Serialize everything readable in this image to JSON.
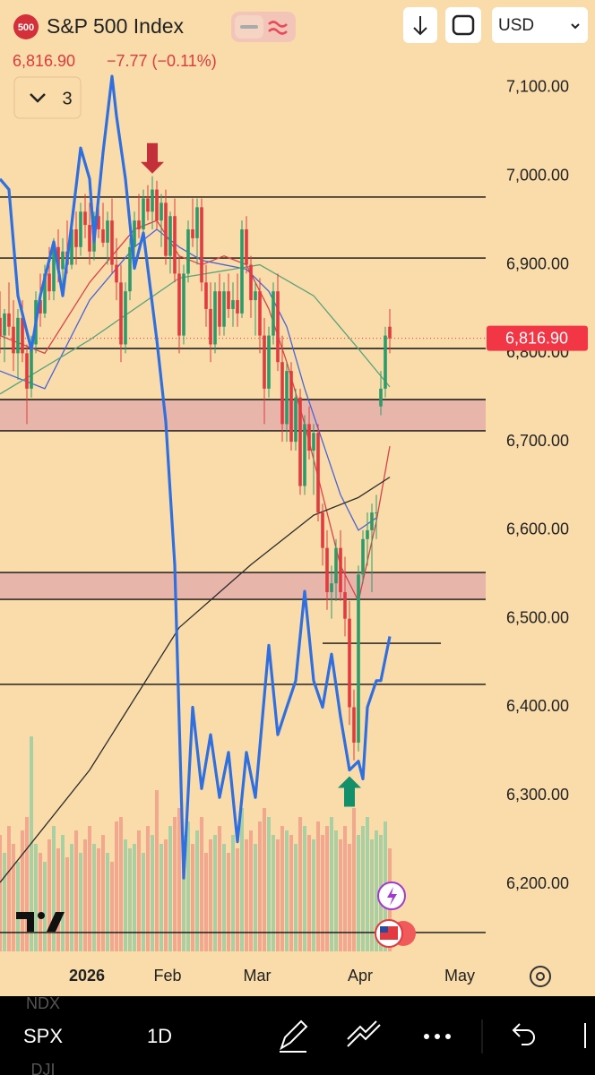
{
  "header": {
    "badge": "500",
    "title": "S&P 500 Index",
    "price": "6,816.90",
    "change": "−7.77 (−0.11%)",
    "indicator_count": "3",
    "currency": "USD"
  },
  "toolbar": {
    "symbol_above": "NDX",
    "symbol": "SPX",
    "symbol_below": "DJI",
    "interval": "1D"
  },
  "chart_data": {
    "type": "candlestick",
    "up_color": "#2e9a6a",
    "down_color": "#e23a40",
    "volume_up_color": "#a9cfa3",
    "volume_down_color": "#f3a78e",
    "candles": [
      [
        6840,
        6870,
        6800,
        6820
      ],
      [
        6820,
        6850,
        6790,
        6845
      ],
      [
        6845,
        6880,
        6820,
        6830
      ],
      [
        6830,
        6860,
        6780,
        6800
      ],
      [
        6800,
        6850,
        6770,
        6840
      ],
      [
        6840,
        6860,
        6790,
        6800
      ],
      [
        6800,
        6810,
        6720,
        6760
      ],
      [
        6760,
        6820,
        6750,
        6810
      ],
      [
        6810,
        6870,
        6800,
        6860
      ],
      [
        6860,
        6890,
        6830,
        6845
      ],
      [
        6845,
        6900,
        6840,
        6890
      ],
      [
        6890,
        6920,
        6860,
        6870
      ],
      [
        6870,
        6930,
        6860,
        6920
      ],
      [
        6920,
        6940,
        6880,
        6895
      ],
      [
        6895,
        6930,
        6870,
        6915
      ],
      [
        6915,
        6950,
        6890,
        6900
      ],
      [
        6900,
        6950,
        6895,
        6940
      ],
      [
        6940,
        6960,
        6900,
        6920
      ],
      [
        6920,
        6970,
        6910,
        6960
      ],
      [
        6960,
        6980,
        6930,
        6945
      ],
      [
        6945,
        6970,
        6900,
        6915
      ],
      [
        6915,
        6960,
        6905,
        6955
      ],
      [
        6955,
        6980,
        6930,
        6940
      ],
      [
        6940,
        6970,
        6920,
        6925
      ],
      [
        6925,
        6960,
        6900,
        6950
      ],
      [
        6950,
        6975,
        6890,
        6900
      ],
      [
        6900,
        6930,
        6860,
        6880
      ],
      [
        6880,
        6900,
        6790,
        6810
      ],
      [
        6810,
        6880,
        6800,
        6870
      ],
      [
        6870,
        6930,
        6860,
        6920
      ],
      [
        6920,
        6960,
        6900,
        6950
      ],
      [
        6950,
        6980,
        6930,
        6940
      ],
      [
        6940,
        6985,
        6930,
        6975
      ],
      [
        6975,
        6990,
        6950,
        6960
      ],
      [
        6960,
        7000,
        6940,
        6985
      ],
      [
        6985,
        6995,
        6940,
        6950
      ],
      [
        6950,
        6980,
        6920,
        6970
      ],
      [
        6970,
        6985,
        6900,
        6910
      ],
      [
        6910,
        6960,
        6890,
        6955
      ],
      [
        6955,
        6975,
        6880,
        6890
      ],
      [
        6890,
        6910,
        6800,
        6820
      ],
      [
        6820,
        6900,
        6810,
        6890
      ],
      [
        6890,
        6950,
        6880,
        6940
      ],
      [
        6940,
        6975,
        6920,
        6930
      ],
      [
        6930,
        6975,
        6900,
        6965
      ],
      [
        6965,
        6975,
        6870,
        6880
      ],
      [
        6880,
        6900,
        6830,
        6850
      ],
      [
        6850,
        6880,
        6790,
        6810
      ],
      [
        6810,
        6880,
        6800,
        6870
      ],
      [
        6870,
        6890,
        6820,
        6830
      ],
      [
        6830,
        6880,
        6820,
        6870
      ],
      [
        6870,
        6890,
        6840,
        6850
      ],
      [
        6850,
        6880,
        6830,
        6860
      ],
      [
        6860,
        6890,
        6830,
        6845
      ],
      [
        6845,
        6950,
        6840,
        6940
      ],
      [
        6940,
        6955,
        6890,
        6900
      ],
      [
        6900,
        6910,
        6840,
        6860
      ],
      [
        6860,
        6880,
        6820,
        6870
      ],
      [
        6870,
        6885,
        6800,
        6820
      ],
      [
        6820,
        6840,
        6720,
        6760
      ],
      [
        6760,
        6830,
        6750,
        6820
      ],
      [
        6820,
        6880,
        6810,
        6870
      ],
      [
        6870,
        6890,
        6780,
        6790
      ],
      [
        6790,
        6820,
        6700,
        6720
      ],
      [
        6720,
        6790,
        6700,
        6780
      ],
      [
        6780,
        6790,
        6690,
        6700
      ],
      [
        6700,
        6760,
        6690,
        6750
      ],
      [
        6750,
        6760,
        6640,
        6650
      ],
      [
        6650,
        6730,
        6640,
        6720
      ],
      [
        6720,
        6740,
        6680,
        6690
      ],
      [
        6690,
        6720,
        6640,
        6710
      ],
      [
        6710,
        6720,
        6610,
        6620
      ],
      [
        6620,
        6630,
        6560,
        6580
      ],
      [
        6580,
        6600,
        6510,
        6530
      ],
      [
        6530,
        6560,
        6500,
        6540
      ],
      [
        6540,
        6590,
        6520,
        6580
      ],
      [
        6580,
        6600,
        6520,
        6530
      ],
      [
        6530,
        6570,
        6480,
        6500
      ],
      [
        6500,
        6520,
        6380,
        6400
      ],
      [
        6400,
        6420,
        6340,
        6360
      ],
      [
        6360,
        6560,
        6350,
        6550
      ],
      [
        6550,
        6600,
        6540,
        6590
      ],
      [
        6590,
        6620,
        6560,
        6600
      ],
      [
        6600,
        6630,
        6530,
        6620
      ],
      [
        6620,
        6640,
        6590,
        6620
      ],
      [
        6740,
        6780,
        6730,
        6760
      ],
      [
        6760,
        6830,
        6750,
        6820
      ],
      [
        6830,
        6850,
        6800,
        6816.9
      ]
    ],
    "volume": [
      130,
      110,
      140,
      120,
      100,
      135,
      150,
      240,
      120,
      110,
      100,
      125,
      140,
      115,
      130,
      105,
      120,
      135,
      110,
      125,
      140,
      120,
      115,
      130,
      110,
      100,
      145,
      150,
      125,
      115,
      120,
      135,
      110,
      140,
      130,
      180,
      120,
      125,
      140,
      150,
      160,
      130,
      145,
      120,
      135,
      150,
      110,
      125,
      130,
      140,
      120,
      110,
      130,
      115,
      160,
      125,
      135,
      120,
      145,
      160,
      150,
      130,
      125,
      140,
      135,
      130,
      120,
      150,
      140,
      130,
      125,
      145,
      130,
      140,
      150,
      135,
      125,
      140,
      120,
      160,
      130,
      140,
      150,
      125,
      135,
      130,
      145,
      115
    ],
    "indicator_line": {
      "color": "#2f6fe0",
      "x": [
        0,
        2,
        4,
        7,
        9,
        12,
        14,
        16,
        18,
        20,
        21,
        23,
        25,
        26,
        28,
        30,
        32,
        35,
        37,
        39,
        41,
        43,
        45,
        47,
        49,
        51,
        53,
        55,
        57,
        60,
        62,
        64,
        66,
        68,
        70,
        72,
        74,
        76,
        78,
        80,
        81,
        82,
        84,
        85,
        87
      ],
      "values": [
        6997,
        6985,
        6865,
        6804,
        6865,
        6926,
        6865,
        6946,
        7032,
        6997,
        6926,
        7027,
        7113,
        7068,
        6997,
        6896,
        6936,
        6815,
        6723,
        6561,
        6207,
        6400,
        6308,
        6369,
        6298,
        6349,
        6248,
        6349,
        6298,
        6470,
        6369,
        6400,
        6430,
        6531,
        6430,
        6400,
        6460,
        6389,
        6329,
        6339,
        6319,
        6400,
        6430,
        6430,
        6480
      ]
    },
    "moving_averages": [
      {
        "color": "#d9434a",
        "x": [
          0,
          10,
          20,
          30,
          35,
          40,
          45,
          50,
          55,
          60,
          64,
          68,
          72,
          76,
          80,
          84,
          87
        ],
        "values": [
          6820,
          6800,
          6880,
          6940,
          6950,
          6910,
          6900,
          6910,
          6900,
          6850,
          6790,
          6720,
          6640,
          6560,
          6520,
          6610,
          6695
        ]
      },
      {
        "color": "#4a64d8",
        "x": [
          0,
          10,
          20,
          30,
          35,
          40,
          45,
          50,
          55,
          60,
          64,
          68,
          72,
          76,
          80,
          84
        ],
        "values": [
          6780,
          6760,
          6860,
          6920,
          6940,
          6920,
          6905,
          6900,
          6895,
          6870,
          6830,
          6760,
          6700,
          6640,
          6600,
          6614
        ]
      },
      {
        "color": "#5aa37a",
        "x": [
          0,
          20,
          40,
          58,
          70,
          80,
          87
        ],
        "values": [
          6754,
          6815,
          6885,
          6900,
          6865,
          6805,
          6762
        ]
      },
      {
        "color": "#2b2b2b",
        "x": [
          0,
          20,
          40,
          56,
          70,
          80,
          87
        ],
        "values": [
          6202,
          6329,
          6490,
          6561,
          6617,
          6637,
          6660
        ]
      }
    ],
    "levels": [
      6976.5,
      6907.6,
      6805.4,
      6747.7,
      6712.3,
      6552.3,
      6521.9,
      6425.8,
      6145.4
    ],
    "zones": [
      [
        6712.3,
        6747.7
      ],
      [
        6521.9,
        6552.3
      ]
    ],
    "zone_color": "#e8b5aa",
    "range_line": {
      "value": 6472.3,
      "x": [
        72,
        98.4
      ]
    },
    "annotations": [
      {
        "kind": "down",
        "color": "#c4303a",
        "x": 34,
        "y": 7003
      },
      {
        "kind": "up",
        "color": "#13906a",
        "x": 78,
        "y": 6322
      }
    ],
    "last_price": {
      "value": 6816.9,
      "label": "6,816.90",
      "color": "#f23645"
    },
    "xlim": [
      0,
      108.4
    ],
    "xticks": [
      {
        "value": 19.4,
        "label": "2026"
      },
      {
        "value": 37.4,
        "label": "Feb"
      },
      {
        "value": 57.4,
        "label": "Mar"
      },
      {
        "value": 80.4,
        "label": "Apr"
      },
      {
        "value": 102.6,
        "label": "May"
      }
    ],
    "ylim": [
      6124.1,
      7199.2
    ],
    "yticks": [
      {
        "value": 6200,
        "label": "6,200.00"
      },
      {
        "value": 6300,
        "label": "6,300.00"
      },
      {
        "value": 6400,
        "label": "6,400.00"
      },
      {
        "value": 6500,
        "label": "6,500.00"
      },
      {
        "value": 6600,
        "label": "6,600.00"
      },
      {
        "value": 6700,
        "label": "6,700.00"
      },
      {
        "value": 6800,
        "label": "6,800.00"
      },
      {
        "value": 6900,
        "label": "6,900.00"
      },
      {
        "value": 7000,
        "label": "7,000.00"
      },
      {
        "value": 7100,
        "label": "7,100.00"
      }
    ]
  }
}
